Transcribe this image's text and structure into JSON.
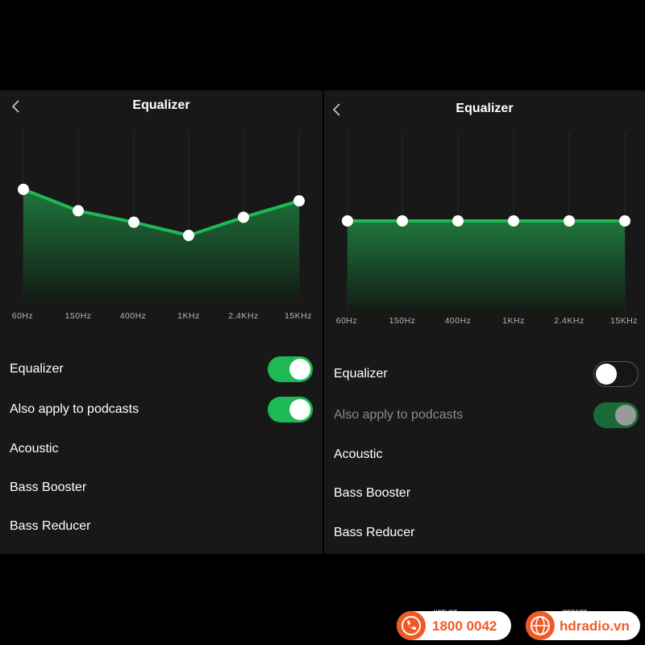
{
  "left": {
    "title": "Equalizer",
    "bands": [
      {
        "freq": "60Hz",
        "level": 0.78
      },
      {
        "freq": "150Hz",
        "level": 0.65
      },
      {
        "freq": "400Hz",
        "level": 0.58
      },
      {
        "freq": "1KHz",
        "level": 0.5
      },
      {
        "freq": "2.4KHz",
        "level": 0.61
      },
      {
        "freq": "15KHz",
        "level": 0.71
      }
    ],
    "equalizer_label": "Equalizer",
    "equalizer_on": true,
    "podcasts_label": "Also apply to podcasts",
    "podcasts_on": true,
    "presets": [
      "Acoustic",
      "Bass Booster",
      "Bass Reducer"
    ]
  },
  "right": {
    "title": "Equalizer",
    "bands": [
      {
        "freq": "60Hz",
        "level": 0.5
      },
      {
        "freq": "150Hz",
        "level": 0.5
      },
      {
        "freq": "400Hz",
        "level": 0.5
      },
      {
        "freq": "1KHz",
        "level": 0.5
      },
      {
        "freq": "2.4KHz",
        "level": 0.5
      },
      {
        "freq": "15KHz",
        "level": 0.5
      }
    ],
    "equalizer_label": "Equalizer",
    "equalizer_on": false,
    "podcasts_label": "Also apply to podcasts",
    "podcasts_on": true,
    "podcasts_disabled": true,
    "presets": [
      "Acoustic",
      "Bass Booster",
      "Bass Reducer"
    ]
  },
  "footer": {
    "hotline_label": "HOTLINE",
    "hotline_number": "1800 0042",
    "website_label": "WEBSITE",
    "website_url": "hdradio.vn",
    "accent_color": "#f15a24"
  },
  "colors": {
    "spotify_green": "#1db954",
    "panel_bg": "#181818"
  }
}
